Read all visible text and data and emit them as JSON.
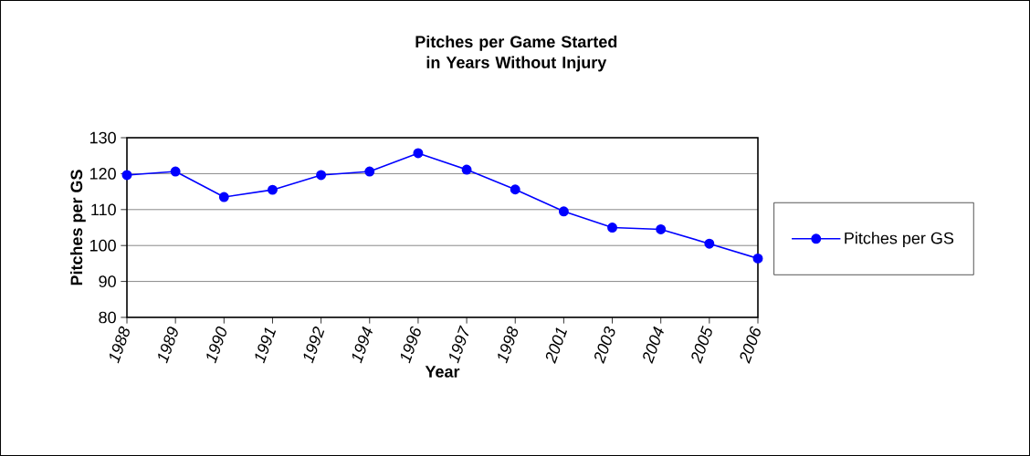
{
  "chart_data": {
    "type": "line",
    "title": "Pitches per Game Started in Years Without Injury",
    "xlabel": "Year",
    "ylabel": "Pitches per GS",
    "categories": [
      "1988",
      "1989",
      "1990",
      "1991",
      "1992",
      "1994",
      "1996",
      "1997",
      "1998",
      "2001",
      "2003",
      "2004",
      "2005",
      "2006"
    ],
    "series": [
      {
        "name": "Pitches per GS",
        "color": "#0000ff",
        "values": [
          119.6,
          120.6,
          113.5,
          115.5,
          119.6,
          120.6,
          125.7,
          121.1,
          115.6,
          109.5,
          105.0,
          104.5,
          100.5,
          96.4
        ]
      }
    ],
    "ylim": [
      80,
      130
    ],
    "yticks": [
      80,
      90,
      100,
      110,
      120,
      130
    ],
    "grid": "y",
    "legend": "right",
    "marker": "circle",
    "line_style": "solid"
  }
}
